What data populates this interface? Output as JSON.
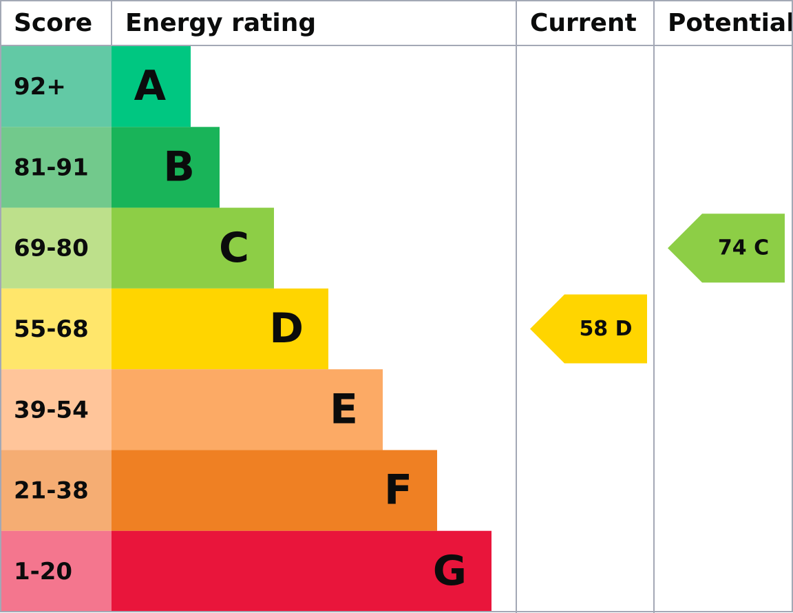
{
  "header": {
    "score": "Score",
    "energy": "Energy rating",
    "current": "Current",
    "potential": "Potential"
  },
  "rows": [
    {
      "score": "92+",
      "letter": "A",
      "score_color": "#62c9a5",
      "color": "#00c781"
    },
    {
      "score": "81-91",
      "letter": "B",
      "score_color": "#72c98c",
      "color": "#19b459"
    },
    {
      "score": "69-80",
      "letter": "C",
      "score_color": "#bde08b",
      "color": "#8dce46"
    },
    {
      "score": "55-68",
      "letter": "D",
      "score_color": "#ffe66b",
      "color": "#ffd500"
    },
    {
      "score": "39-54",
      "letter": "E",
      "score_color": "#ffc59a",
      "color": "#fcaa65"
    },
    {
      "score": "21-38",
      "letter": "F",
      "score_color": "#f5ad73",
      "color": "#ef8023"
    },
    {
      "score": "1-20",
      "letter": "G",
      "score_color": "#f4768e",
      "color": "#e9153b"
    }
  ],
  "current": {
    "label": "58 D"
  },
  "potential": {
    "label": "74 C"
  }
}
